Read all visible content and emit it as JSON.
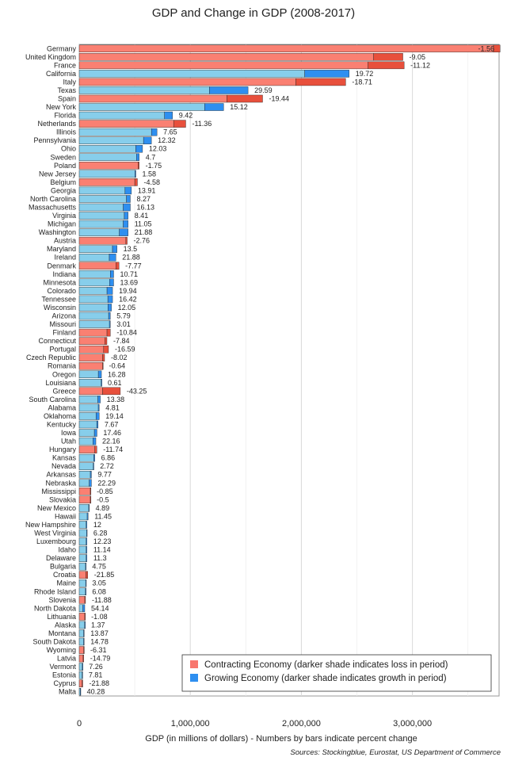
{
  "chart_data": {
    "type": "bar",
    "orientation": "horizontal",
    "title": "GDP and Change in GDP (2008-2017)",
    "xlabel": "GDP (in millions of dollars) - Numbers by bars indicate percent change",
    "source": "Sources: Stockingblue, Eurostat, US Department of Commerce",
    "xlim": [
      0,
      3780000
    ],
    "xticks": [
      0,
      1000000,
      2000000,
      3000000
    ],
    "xtick_labels": [
      "0",
      "1,000,000",
      "2,000,000",
      "3,000,000"
    ],
    "grid": true,
    "legend_position": "bottom-right",
    "legend": [
      {
        "label": "Contracting Economy (darker shade indicates loss in period)",
        "color": "#f8766d"
      },
      {
        "label": "Growing Economy (darker shade indicates growth in period)",
        "color": "#2e8ff0"
      }
    ],
    "colors": {
      "growing_base": "#87ceeb",
      "growing_change": "#2e8ff0",
      "contracting_base": "#fa8072",
      "contracting_change": "#e8503c"
    },
    "value_fields": [
      "name",
      "gdp_2017",
      "percent_change"
    ],
    "rows": [
      [
        "Germany",
        3730000,
        -1.56
      ],
      [
        "United Kingdom",
        2650000,
        -9.05
      ],
      [
        "France",
        2600000,
        -11.12
      ],
      [
        "California",
        2430000,
        19.72
      ],
      [
        "Italy",
        1950000,
        -18.71
      ],
      [
        "Texas",
        1520000,
        29.59
      ],
      [
        "Spain",
        1330000,
        -19.44
      ],
      [
        "New York",
        1300000,
        15.12
      ],
      [
        "Florida",
        840000,
        9.42
      ],
      [
        "Netherlands",
        850000,
        -11.36
      ],
      [
        "Illinois",
        700000,
        7.65
      ],
      [
        "Pennsylvania",
        650000,
        12.32
      ],
      [
        "Ohio",
        570000,
        12.03
      ],
      [
        "Sweden",
        540000,
        4.7
      ],
      [
        "Poland",
        530000,
        -1.75
      ],
      [
        "New Jersey",
        510000,
        1.58
      ],
      [
        "Belgium",
        500000,
        -4.58
      ],
      [
        "Georgia",
        470000,
        13.91
      ],
      [
        "North Carolina",
        460000,
        8.27
      ],
      [
        "Massachusetts",
        460000,
        16.13
      ],
      [
        "Virginia",
        440000,
        8.41
      ],
      [
        "Michigan",
        440000,
        11.05
      ],
      [
        "Washington",
        440000,
        21.88
      ],
      [
        "Austria",
        420000,
        -2.76
      ],
      [
        "Maryland",
        340000,
        13.5
      ],
      [
        "Ireland",
        330000,
        21.88
      ],
      [
        "Denmark",
        330000,
        -7.77
      ],
      [
        "Indiana",
        310000,
        10.71
      ],
      [
        "Minnesota",
        310000,
        13.69
      ],
      [
        "Colorado",
        300000,
        19.94
      ],
      [
        "Tennessee",
        300000,
        16.42
      ],
      [
        "Wisconsin",
        290000,
        12.05
      ],
      [
        "Arizona",
        280000,
        5.79
      ],
      [
        "Missouri",
        280000,
        3.01
      ],
      [
        "Finland",
        250000,
        -10.84
      ],
      [
        "Connecticut",
        230000,
        -7.84
      ],
      [
        "Portugal",
        220000,
        -16.59
      ],
      [
        "Czech Republic",
        210000,
        -8.02
      ],
      [
        "Romania",
        210000,
        -0.64
      ],
      [
        "Oregon",
        200000,
        16.28
      ],
      [
        "Louisiana",
        200000,
        0.61
      ],
      [
        "Greece",
        210000,
        -43.25
      ],
      [
        "South Carolina",
        190000,
        13.38
      ],
      [
        "Alabama",
        180000,
        4.81
      ],
      [
        "Oklahoma",
        180000,
        19.14
      ],
      [
        "Kentucky",
        170000,
        7.67
      ],
      [
        "Iowa",
        160000,
        17.46
      ],
      [
        "Utah",
        150000,
        22.16
      ],
      [
        "Hungary",
        140000,
        -11.74
      ],
      [
        "Kansas",
        140000,
        6.86
      ],
      [
        "Nevada",
        130000,
        2.72
      ],
      [
        "Arkansas",
        110000,
        9.77
      ],
      [
        "Nebraska",
        110000,
        22.29
      ],
      [
        "Mississippi",
        100000,
        -0.85
      ],
      [
        "Slovakia",
        100000,
        -0.5
      ],
      [
        "New Mexico",
        90000,
        4.89
      ],
      [
        "Hawaii",
        80000,
        11.45
      ],
      [
        "New Hampshire",
        70000,
        12
      ],
      [
        "West Virginia",
        70000,
        6.28
      ],
      [
        "Luxembourg",
        70000,
        12.23
      ],
      [
        "Idaho",
        70000,
        11.14
      ],
      [
        "Delaware",
        70000,
        11.3
      ],
      [
        "Bulgaria",
        60000,
        4.75
      ],
      [
        "Croatia",
        60000,
        -21.85
      ],
      [
        "Maine",
        60000,
        3.05
      ],
      [
        "Rhode Island",
        60000,
        6.08
      ],
      [
        "Slovenia",
        50000,
        -11.88
      ],
      [
        "North Dakota",
        50000,
        54.14
      ],
      [
        "Lithuania",
        50000,
        -1.08
      ],
      [
        "Alaska",
        50000,
        1.37
      ],
      [
        "Montana",
        45000,
        13.87
      ],
      [
        "South Dakota",
        45000,
        14.78
      ],
      [
        "Wyoming",
        40000,
        -6.31
      ],
      [
        "Latvia",
        35000,
        -14.79
      ],
      [
        "Vermont",
        30000,
        7.26
      ],
      [
        "Estonia",
        28000,
        7.81
      ],
      [
        "Cyprus",
        25000,
        -21.88
      ],
      [
        "Malta",
        12000,
        40.28
      ]
    ]
  }
}
